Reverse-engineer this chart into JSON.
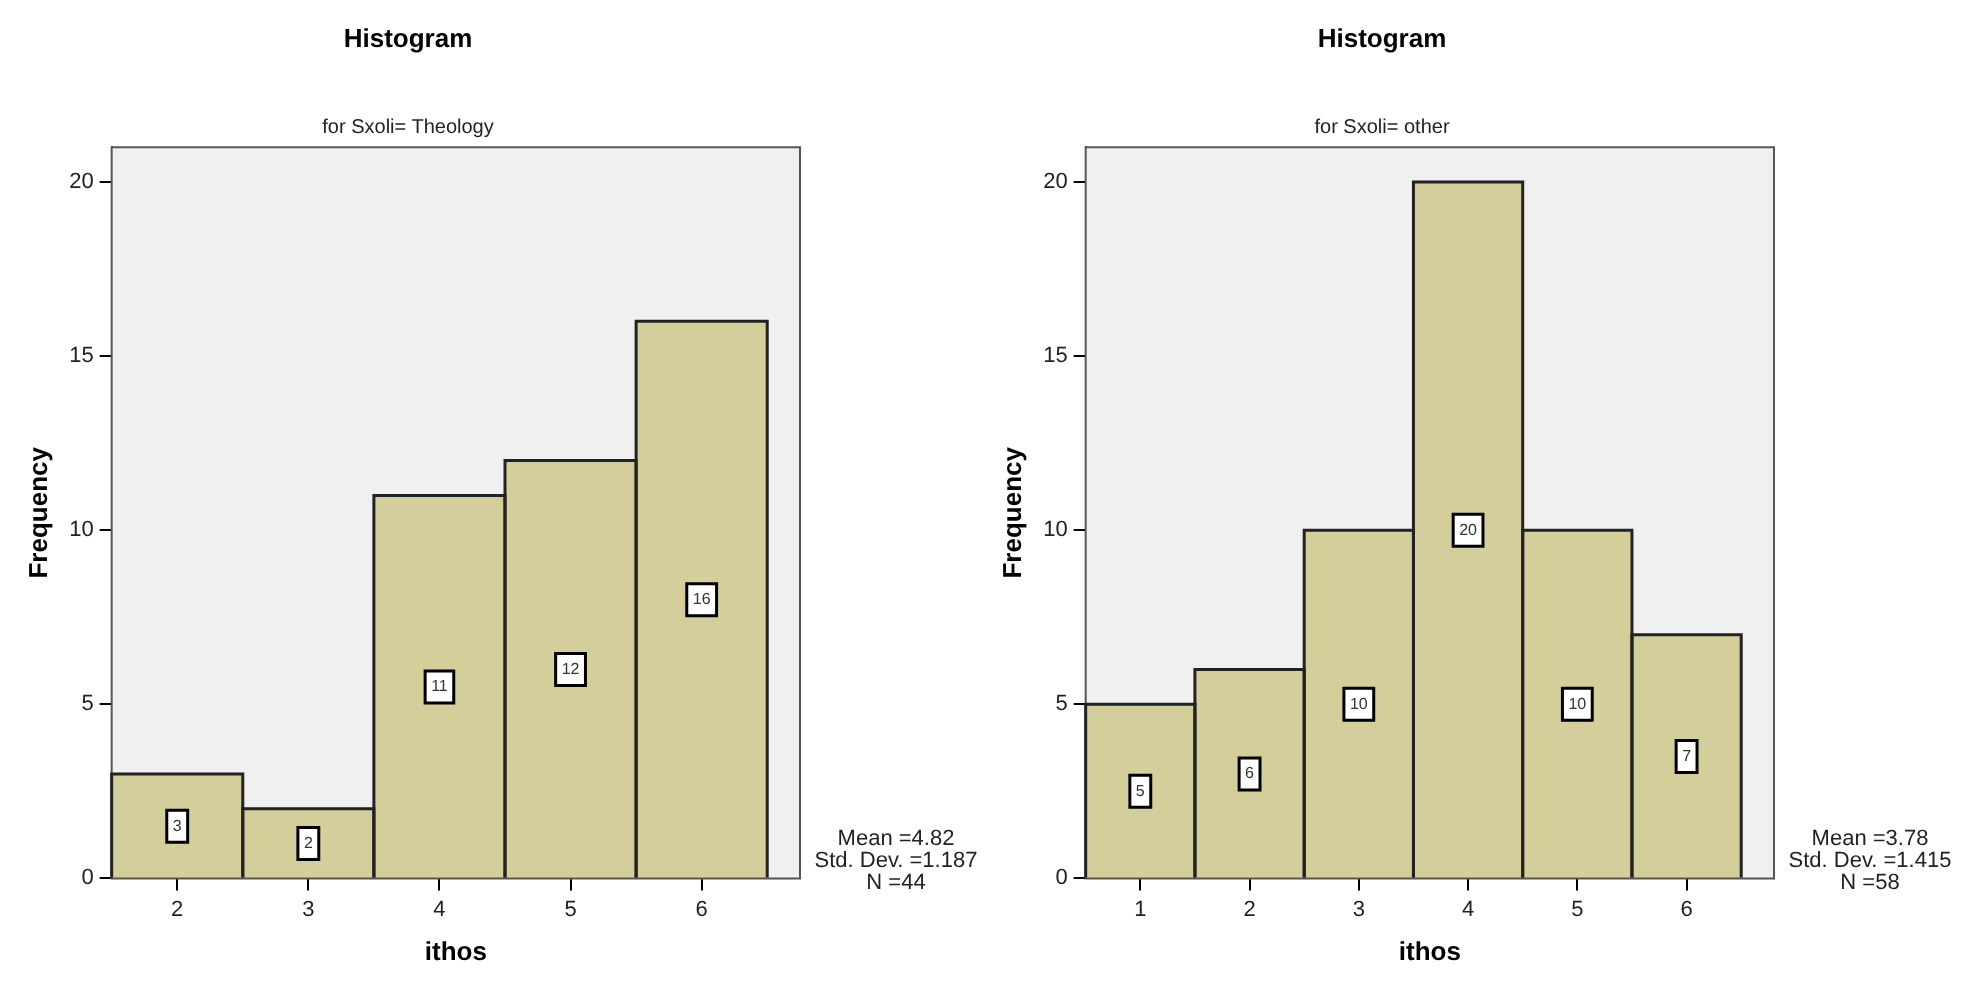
{
  "chart_data": [
    {
      "type": "histogram",
      "title": "Histogram",
      "subtitle": "for Sxoli= Theology",
      "xlabel": "ithos",
      "ylabel": "Frequency",
      "bins": [
        1.5,
        2.5,
        3.5,
        4.5,
        5.5,
        6.5
      ],
      "values": [
        3,
        2,
        11,
        12,
        16
      ],
      "color": "#d4cf9a",
      "xlim": [
        1.5,
        6.75
      ],
      "xticks": [
        2,
        3,
        4,
        5,
        6
      ],
      "ylim": [
        0,
        21
      ],
      "yticks": [
        0,
        5,
        10,
        15,
        20
      ],
      "data_labels": true,
      "annotations": [
        "Mean =4.82",
        "Std. Dev. =1.187",
        "N =44"
      ]
    },
    {
      "type": "histogram",
      "title": "Histogram",
      "subtitle": "for Sxoli= other",
      "xlabel": "ithos",
      "ylabel": "Frequency",
      "bins": [
        0.5,
        1.5,
        2.5,
        3.5,
        4.5,
        5.5,
        6.5
      ],
      "values": [
        5,
        6,
        10,
        20,
        10,
        7
      ],
      "color": "#d4cf9a",
      "xlim": [
        0.5,
        6.8
      ],
      "xticks": [
        1,
        2,
        3,
        4,
        5,
        6
      ],
      "ylim": [
        0,
        21
      ],
      "yticks": [
        0,
        5,
        10,
        15,
        20
      ],
      "data_labels": true,
      "annotations": [
        "Mean =3.78",
        "Std. Dev. =1.415",
        "N =58"
      ]
    }
  ]
}
